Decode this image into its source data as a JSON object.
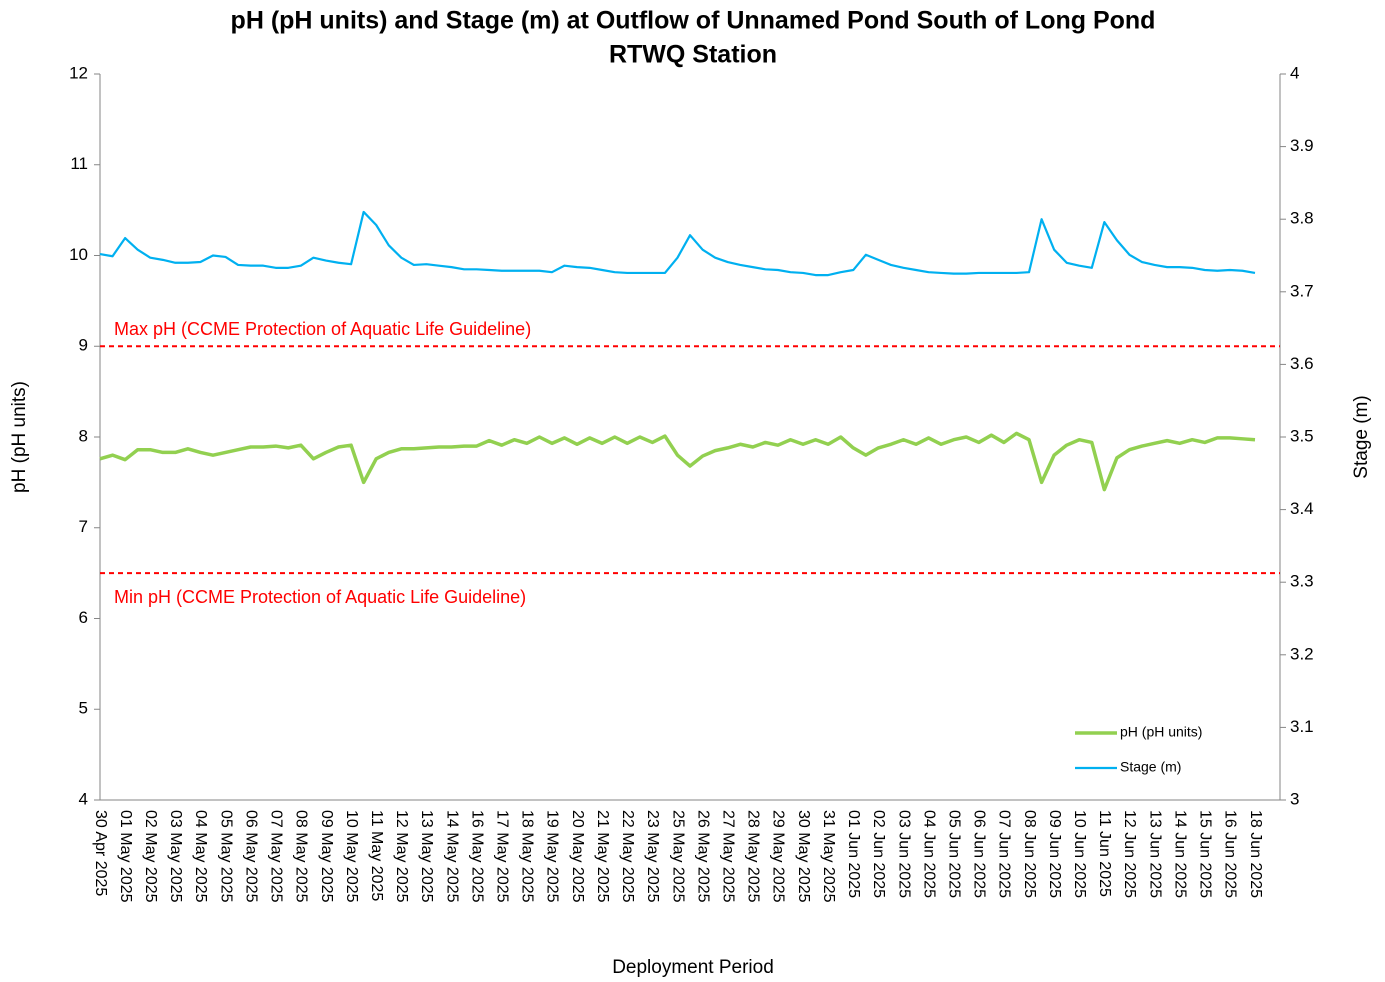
{
  "chart_data": {
    "type": "line",
    "title": [
      "pH (pH units) and Stage (m) at Outflow of Unnamed Pond South of Long Pond",
      "RTWQ Station"
    ],
    "x_label": "Deployment Period",
    "y_label": "pH (pH units)",
    "y2_label": "Stage (m)",
    "categories": [
      "30 Apr 2025",
      null,
      "01 May 2025",
      null,
      "02 May 2025",
      null,
      "03 May 2025",
      null,
      "04 May 2025",
      null,
      "05 May 2025",
      null,
      "06 May 2025",
      null,
      "07 May 2025",
      null,
      "08 May 2025",
      null,
      "09 May 2025",
      null,
      "10 May 2025",
      null,
      "11 May 2025",
      null,
      "12 May 2025",
      null,
      "13 May 2025",
      null,
      "14 May 2025",
      null,
      "16 May 2025",
      null,
      "17 May 2025",
      null,
      "18 May 2025",
      null,
      "19 May 2025",
      null,
      "20 May 2025",
      null,
      "21 May 2025",
      null,
      "22 May 2025",
      null,
      "23 May 2025",
      null,
      "25 May 2025",
      null,
      "26 May 2025",
      null,
      "27 May 2025",
      null,
      "28 May 2025",
      null,
      "29 May 2025",
      null,
      "30 May 2025",
      null,
      "31 May 2025",
      null,
      "01 Jun 2025",
      null,
      "02 Jun 2025",
      null,
      "03 Jun 2025",
      null,
      "04 Jun 2025",
      null,
      "05 Jun 2025",
      null,
      "06 Jun 2025",
      null,
      "07 Jun 2025",
      null,
      "08 Jun 2025",
      null,
      "09 Jun 2025",
      null,
      "10 Jun 2025",
      null,
      "11 Jun 2025",
      null,
      "12 Jun 2025",
      null,
      "13 Jun 2025",
      null,
      "14 Jun 2025",
      null,
      "15 Jun 2025",
      null,
      "16 Jun 2025",
      null,
      "18 Jun 2025"
    ],
    "series": [
      {
        "name": "pH (pH units)",
        "color": "#92d050",
        "axis": "y",
        "values": [
          7.76,
          7.8,
          7.75,
          7.86,
          7.86,
          7.83,
          7.83,
          7.87,
          7.83,
          7.8,
          7.83,
          7.86,
          7.89,
          7.89,
          7.9,
          7.88,
          7.91,
          7.76,
          7.83,
          7.89,
          7.91,
          7.5,
          7.76,
          7.83,
          7.87,
          7.87,
          7.88,
          7.89,
          7.89,
          7.9,
          7.9,
          7.96,
          7.91,
          7.97,
          7.93,
          8.0,
          7.93,
          7.99,
          7.92,
          7.99,
          7.93,
          8.0,
          7.93,
          8.0,
          7.94,
          8.01,
          7.8,
          7.68,
          7.79,
          7.85,
          7.88,
          7.92,
          7.89,
          7.94,
          7.91,
          7.97,
          7.92,
          7.97,
          7.92,
          8.0,
          7.88,
          7.8,
          7.88,
          7.92,
          7.97,
          7.92,
          7.99,
          7.92,
          7.97,
          8.0,
          7.94,
          8.02,
          7.94,
          8.04,
          7.97,
          7.5,
          7.8,
          7.91,
          7.97,
          7.94,
          7.42,
          7.77,
          7.86,
          7.9,
          7.93,
          7.96,
          7.93,
          7.97,
          7.94,
          7.99,
          7.99,
          7.98,
          7.97
        ]
      },
      {
        "name": "Stage (m)",
        "color": "#00b0f0",
        "axis": "y2",
        "values": [
          3.752,
          3.749,
          3.774,
          3.758,
          3.747,
          3.744,
          3.74,
          3.74,
          3.741,
          3.75,
          3.748,
          3.737,
          3.736,
          3.736,
          3.733,
          3.733,
          3.736,
          3.747,
          3.743,
          3.74,
          3.738,
          3.81,
          3.792,
          3.764,
          3.747,
          3.737,
          3.738,
          3.736,
          3.734,
          3.731,
          3.731,
          3.73,
          3.729,
          3.729,
          3.729,
          3.729,
          3.727,
          3.736,
          3.734,
          3.733,
          3.73,
          3.727,
          3.726,
          3.726,
          3.726,
          3.726,
          3.747,
          3.778,
          3.758,
          3.747,
          3.741,
          3.737,
          3.734,
          3.731,
          3.73,
          3.727,
          3.726,
          3.723,
          3.723,
          3.727,
          3.73,
          3.751,
          3.744,
          3.737,
          3.733,
          3.73,
          3.727,
          3.726,
          3.725,
          3.725,
          3.726,
          3.726,
          3.726,
          3.726,
          3.727,
          3.8,
          3.758,
          3.74,
          3.736,
          3.733,
          3.796,
          3.771,
          3.751,
          3.741,
          3.737,
          3.734,
          3.734,
          3.733,
          3.73,
          3.729,
          3.73,
          3.729,
          3.726
        ]
      }
    ],
    "thresholds": [
      {
        "value": 9,
        "label": "Max pH (CCME Protection of Aquatic Life Guideline)",
        "color": "#ff0000"
      },
      {
        "value": 6.5,
        "label": "Min pH (CCME Protection of Aquatic Life Guideline)",
        "color": "#ff0000"
      }
    ],
    "ylim": [
      4,
      12
    ],
    "yticks": [
      4,
      5,
      6,
      7,
      8,
      9,
      10,
      11,
      12
    ],
    "y2lim": [
      3,
      4
    ],
    "y2ticks": [
      3,
      3.1,
      3.2,
      3.3,
      3.4,
      3.5,
      3.6,
      3.7,
      3.8,
      3.9,
      4
    ],
    "grid": false,
    "legend": "lower right"
  }
}
